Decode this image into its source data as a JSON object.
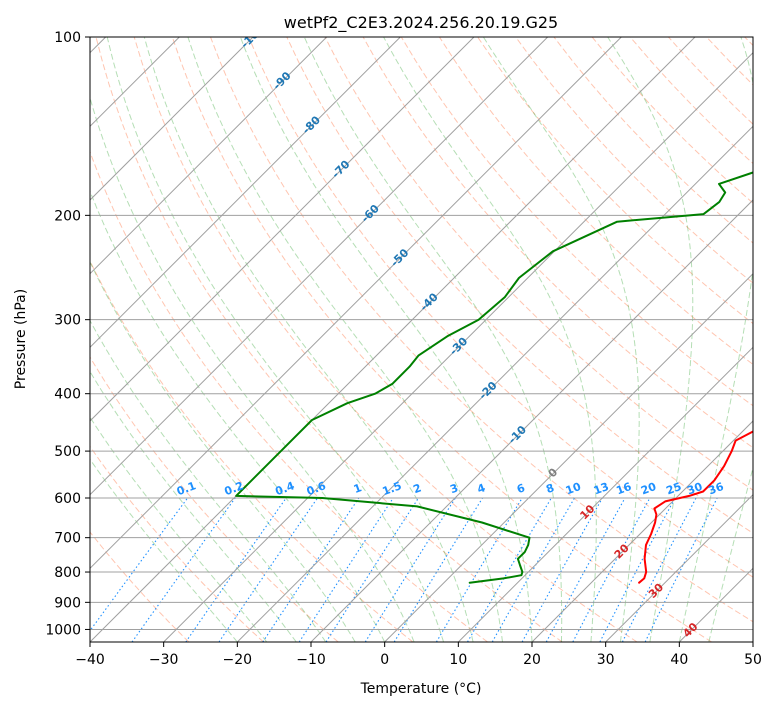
{
  "chart_data": {
    "type": "line",
    "title": "wetPf2_C2E3.2024.256.20.19.G25",
    "xlabel": "Temperature (°C)",
    "ylabel": "Pressure (hPa)",
    "xlim": [
      -40,
      50
    ],
    "ylim": [
      1050,
      100
    ],
    "x_ticks": [
      -40,
      -30,
      -20,
      -10,
      0,
      10,
      20,
      30,
      40,
      50
    ],
    "x_tick_labels": [
      "−40",
      "−30",
      "−20",
      "−10",
      "0",
      "10",
      "20",
      "30",
      "40",
      "50"
    ],
    "y_ticks": [
      100,
      200,
      300,
      400,
      500,
      600,
      700,
      800,
      900,
      1000
    ],
    "y_tick_labels": [
      "100",
      "200",
      "300",
      "400",
      "500",
      "600",
      "700",
      "800",
      "900",
      "1000"
    ],
    "colors": {
      "temperature": "#ff0000",
      "dewpoint": "#008000",
      "isotherm": "#a0a0a0",
      "isobar": "#a0a0a0",
      "dry_adiabat": "#ff7f50",
      "moist_adiabat": "#2ca02c",
      "mixing_ratio": "#1e90ff",
      "cold_label": "#1f77b4",
      "warm_label": "#d62728",
      "zero_label": "#808080"
    },
    "series": [
      {
        "name": "Temperature",
        "color": "#ff0000",
        "points": [
          [
            834,
            26.5
          ],
          [
            820,
            26.6
          ],
          [
            800,
            26.0
          ],
          [
            760,
            24.0
          ],
          [
            720,
            22.3
          ],
          [
            690,
            21.5
          ],
          [
            660,
            20.5
          ],
          [
            640,
            19.6
          ],
          [
            625,
            18.5
          ],
          [
            608,
            19.0
          ],
          [
            595,
            21.5
          ],
          [
            585,
            22.8
          ],
          [
            560,
            22.8
          ],
          [
            530,
            22.2
          ],
          [
            500,
            21.2
          ],
          [
            480,
            20.3
          ],
          [
            462,
            21.5
          ],
          [
            440,
            21.8
          ],
          [
            425,
            21.3
          ],
          [
            405,
            20.0
          ],
          [
            390,
            19.2
          ],
          [
            375,
            18.8
          ],
          [
            350,
            18.8
          ],
          [
            325,
            18.3
          ],
          [
            305,
            16.8
          ],
          [
            285,
            14.2
          ],
          [
            265,
            12.5
          ],
          [
            240,
            10.5
          ],
          [
            215,
            8.5
          ],
          [
            200,
            7.8
          ],
          [
            180,
            7.7
          ],
          [
            163,
            6.3
          ],
          [
            145,
            4.5
          ],
          [
            130,
            2.8
          ],
          [
            120,
            1.5
          ],
          [
            113,
            1.7
          ],
          [
            107,
            4.8
          ],
          [
            102,
            6.0
          ],
          [
            100,
            6.2
          ]
        ]
      },
      {
        "name": "Dewpoint",
        "color": "#008000",
        "points": [
          [
            834,
            3.5
          ],
          [
            820,
            7.5
          ],
          [
            810,
            9.5
          ],
          [
            800,
            9.2
          ],
          [
            780,
            8.0
          ],
          [
            760,
            6.8
          ],
          [
            740,
            6.8
          ],
          [
            720,
            6.3
          ],
          [
            700,
            5.5
          ],
          [
            660,
            -3.0
          ],
          [
            620,
            -14.0
          ],
          [
            600,
            -28.0
          ],
          [
            595,
            -40.0
          ],
          [
            470,
            -40.0
          ],
          [
            443,
            -40.0
          ],
          [
            415,
            -37.5
          ],
          [
            400,
            -35.0
          ],
          [
            385,
            -34.0
          ],
          [
            360,
            -34.0
          ],
          [
            345,
            -34.3
          ],
          [
            320,
            -33.0
          ],
          [
            300,
            -31.0
          ],
          [
            275,
            -30.5
          ],
          [
            255,
            -31.2
          ],
          [
            230,
            -30.2
          ],
          [
            205,
            -25.5
          ],
          [
            199,
            -14.8
          ],
          [
            190,
            -14.3
          ],
          [
            183,
            -14.8
          ],
          [
            177,
            -16.8
          ],
          [
            170,
            -14.0
          ],
          [
            160,
            -10.2
          ],
          [
            152,
            -9.5
          ],
          [
            145,
            -10.2
          ],
          [
            137,
            -9.4
          ],
          [
            126,
            -5.7
          ],
          [
            120,
            -3.8
          ],
          [
            110,
            -2.5
          ],
          [
            100,
            0.0
          ]
        ]
      }
    ],
    "mixing_ratio_labels": [
      "0.1",
      "0.2",
      "0.4",
      "0.6",
      "1",
      "1.5",
      "2",
      "3",
      "4",
      "6",
      "8",
      "10",
      "13",
      "16",
      "20",
      "25",
      "30",
      "36"
    ],
    "mixing_ratio_values": [
      0.1,
      0.2,
      0.4,
      0.6,
      1,
      1.5,
      2,
      3,
      4,
      6,
      8,
      10,
      13,
      16,
      20,
      25,
      30,
      36
    ],
    "isotherm_labels": [
      {
        "text": "-100",
        "value": -100
      },
      {
        "text": "-90",
        "value": -90
      },
      {
        "text": "-80",
        "value": -80
      },
      {
        "text": "-70",
        "value": -70
      },
      {
        "text": "-60",
        "value": -60
      },
      {
        "text": "-50",
        "value": -50
      },
      {
        "text": "-40",
        "value": -40
      },
      {
        "text": "-30",
        "value": -30
      },
      {
        "text": "-20",
        "value": -20
      },
      {
        "text": "-10",
        "value": -10
      },
      {
        "text": "0",
        "value": 0
      },
      {
        "text": "10",
        "value": 10
      },
      {
        "text": "20",
        "value": 20
      },
      {
        "text": "30",
        "value": 30
      },
      {
        "text": "40",
        "value": 40
      }
    ]
  }
}
